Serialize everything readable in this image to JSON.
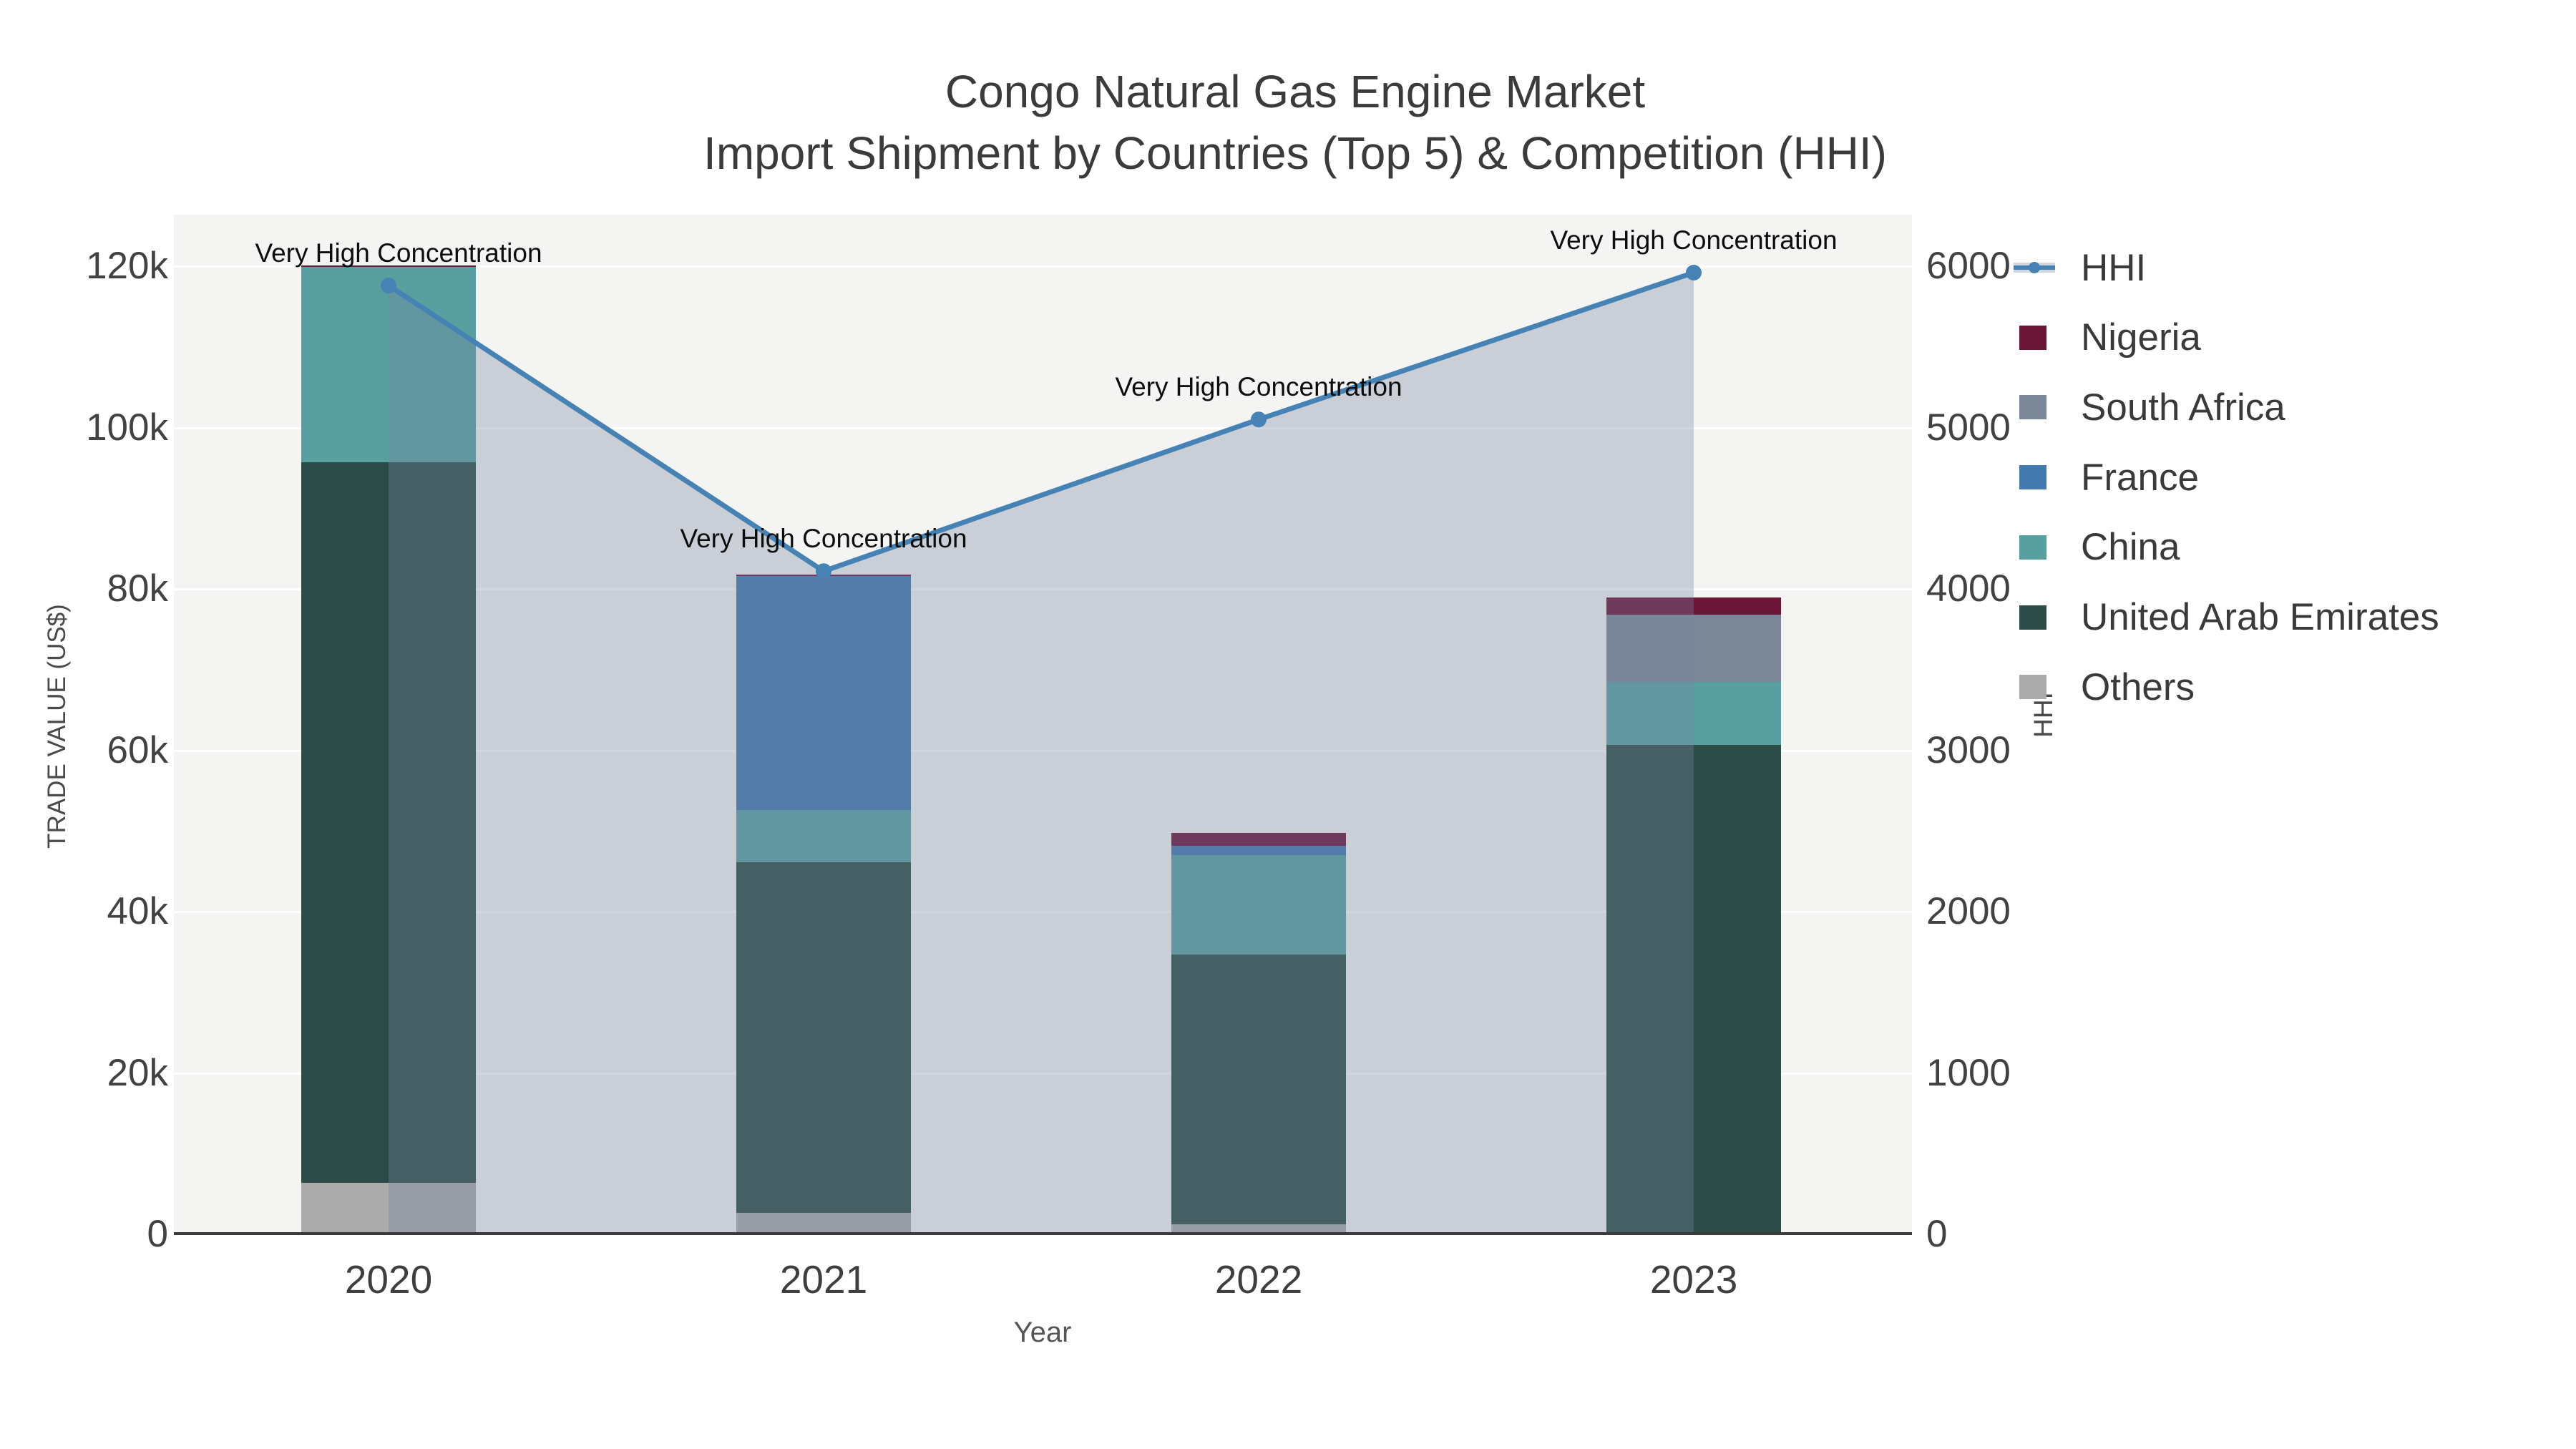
{
  "title": {
    "line1": "Congo Natural Gas Engine Market",
    "line2": "Import Shipment by Countries (Top 5) & Competition (HHI)"
  },
  "axes": {
    "x": {
      "title": "Year",
      "ticks": [
        "2020",
        "2021",
        "2022",
        "2023"
      ]
    },
    "y_left": {
      "title": "TRADE VALUE (US$)",
      "ticks": [
        "0",
        "20k",
        "40k",
        "60k",
        "80k",
        "100k",
        "120k"
      ],
      "tick_values": [
        0,
        20000,
        40000,
        60000,
        80000,
        100000,
        120000
      ],
      "range": [
        0,
        126500
      ]
    },
    "y_right": {
      "title": "HHI",
      "ticks": [
        "0",
        "1000",
        "2000",
        "3000",
        "4000",
        "5000",
        "6000"
      ],
      "tick_values": [
        0,
        1000,
        2000,
        3000,
        4000,
        5000,
        6000
      ],
      "range": [
        0,
        6325
      ]
    }
  },
  "legend": {
    "items": [
      {
        "label": "HHI",
        "type": "line",
        "color": "#4682B4"
      },
      {
        "label": "Nigeria",
        "type": "square",
        "color": "#6B1537"
      },
      {
        "label": "South Africa",
        "type": "square",
        "color": "#7B8797"
      },
      {
        "label": "France",
        "type": "square",
        "color": "#4479B0"
      },
      {
        "label": "China",
        "type": "square",
        "color": "#58A0A0"
      },
      {
        "label": "United Arab Emirates",
        "type": "square",
        "color": "#2D4C47"
      },
      {
        "label": "Others",
        "type": "square",
        "color": "#ABABAB"
      }
    ]
  },
  "chart_data": {
    "type": "combo-stacked-bar-and-line",
    "categories": [
      "2020",
      "2021",
      "2022",
      "2023"
    ],
    "bar_unit": "US$",
    "grid": "horizontal, white on light gray",
    "legend_position": "right",
    "series": [
      {
        "name": "Others",
        "color": "#ABABAB",
        "values": [
          6400,
          2700,
          1200,
          300
        ]
      },
      {
        "name": "United Arab Emirates",
        "color": "#2D4C47",
        "values": [
          89300,
          43400,
          33500,
          60400
        ]
      },
      {
        "name": "China",
        "color": "#58A0A0",
        "values": [
          24200,
          6500,
          12300,
          7800
        ]
      },
      {
        "name": "France",
        "color": "#4479B0",
        "values": [
          0,
          29000,
          1200,
          0
        ]
      },
      {
        "name": "South Africa",
        "color": "#7B8797",
        "values": [
          0,
          0,
          0,
          8300
        ]
      },
      {
        "name": "Nigeria",
        "color": "#6B1537",
        "values": [
          200,
          150,
          1600,
          2100
        ]
      }
    ],
    "stack_totals": [
      120100,
      81750,
      49800,
      78900
    ],
    "line_series": {
      "name": "HHI",
      "axis": "right",
      "color": "#4682B4",
      "area_fill": "rgba(118,132,161,0.34)",
      "values": [
        5880,
        4110,
        5050,
        5960
      ],
      "annotations": [
        "Very High Concentration",
        "Very High Concentration",
        "Very High Concentration",
        "Very High Concentration"
      ]
    }
  },
  "colors": {
    "plot_background": "#F4F4F3",
    "grid_line": "#FFFFFF",
    "axis_line": "#3A3A3A",
    "title_text": "#3B3B3B",
    "tick_text": "#424242",
    "annotation_text": "#0D0D0D",
    "hhi_line": "#4682B4"
  }
}
